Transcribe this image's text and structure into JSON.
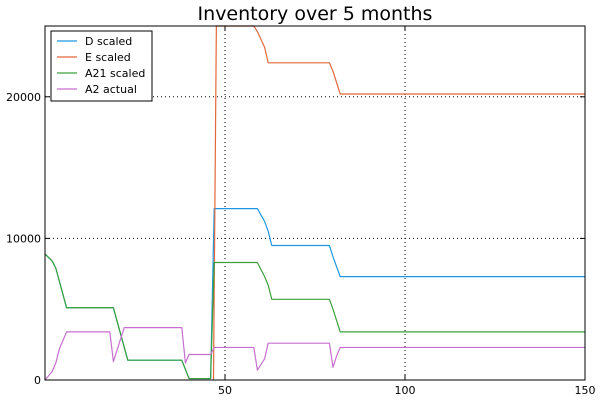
{
  "chart_data": {
    "type": "line",
    "title": "Inventory over 5 months",
    "xlabel": "",
    "ylabel": "",
    "xlim": [
      0,
      150
    ],
    "ylim": [
      0,
      25000
    ],
    "xticks": [
      50,
      100,
      150
    ],
    "yticks": [
      0,
      10000,
      20000
    ],
    "grid": true,
    "legend": "top-left",
    "series": [
      {
        "name": "D scaled",
        "color": "#1f97e0",
        "points": [
          [
            0,
            8900
          ],
          [
            2,
            8400
          ],
          [
            3,
            7900
          ],
          [
            6,
            5100
          ],
          [
            19,
            5100
          ],
          [
            23,
            1400
          ],
          [
            38,
            1400
          ],
          [
            40,
            100
          ],
          [
            46,
            100
          ],
          [
            47,
            12100
          ],
          [
            59,
            12100
          ],
          [
            61,
            11200
          ],
          [
            62,
            10500
          ],
          [
            63,
            9500
          ],
          [
            79,
            9500
          ],
          [
            80,
            8700
          ],
          [
            82,
            7300
          ],
          [
            150,
            7300
          ]
        ]
      },
      {
        "name": "E scaled",
        "color": "#e2683b",
        "points": [
          [
            46.8,
            0
          ],
          [
            47.6,
            25000
          ],
          [
            58,
            25000
          ],
          [
            59,
            24600
          ],
          [
            61,
            23500
          ],
          [
            62,
            22400
          ],
          [
            79,
            22400
          ],
          [
            80,
            21800
          ],
          [
            82,
            20200
          ],
          [
            150,
            20200
          ]
        ]
      },
      {
        "name": "A21 scaled",
        "color": "#3aa13a",
        "points": [
          [
            0,
            8900
          ],
          [
            2,
            8400
          ],
          [
            3,
            7900
          ],
          [
            6,
            5100
          ],
          [
            19,
            5100
          ],
          [
            23,
            1400
          ],
          [
            38,
            1400
          ],
          [
            40,
            100
          ],
          [
            46,
            100
          ],
          [
            47,
            8300
          ],
          [
            59,
            8300
          ],
          [
            61,
            7300
          ],
          [
            62,
            6700
          ],
          [
            63,
            5700
          ],
          [
            79,
            5700
          ],
          [
            80,
            5000
          ],
          [
            82,
            3400
          ],
          [
            150,
            3400
          ]
        ]
      },
      {
        "name": "A2 actual",
        "color": "#c76fcf",
        "points": [
          [
            0,
            0
          ],
          [
            2,
            600
          ],
          [
            3,
            1200
          ],
          [
            4,
            2200
          ],
          [
            6,
            3400
          ],
          [
            18,
            3400
          ],
          [
            19,
            1300
          ],
          [
            21,
            2900
          ],
          [
            22,
            3700
          ],
          [
            38,
            3700
          ],
          [
            39,
            1200
          ],
          [
            40,
            1800
          ],
          [
            46,
            1800
          ],
          [
            47,
            2300
          ],
          [
            58,
            2300
          ],
          [
            59,
            700
          ],
          [
            61,
            1500
          ],
          [
            62,
            2600
          ],
          [
            79,
            2600
          ],
          [
            80,
            900
          ],
          [
            81,
            1700
          ],
          [
            82,
            2300
          ],
          [
            150,
            2300
          ]
        ]
      }
    ]
  }
}
